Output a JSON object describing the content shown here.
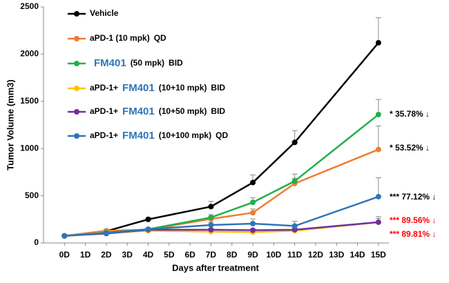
{
  "chart_data": {
    "type": "line",
    "ylabel": "Tumor Volume (mm3)",
    "xlabel": "Days after treatment",
    "x": [
      0,
      2,
      4,
      7,
      9,
      11,
      15
    ],
    "xlim": [
      -1,
      15.5
    ],
    "xticks": [
      {
        "value": 0,
        "label": "0D"
      },
      {
        "value": 1,
        "label": "1D"
      },
      {
        "value": 2,
        "label": "2D"
      },
      {
        "value": 3,
        "label": "3D"
      },
      {
        "value": 4,
        "label": "4D"
      },
      {
        "value": 5,
        "label": "5D"
      },
      {
        "value": 6,
        "label": "6D"
      },
      {
        "value": 7,
        "label": "7D"
      },
      {
        "value": 8,
        "label": "8D"
      },
      {
        "value": 9,
        "label": "9D"
      },
      {
        "value": 10,
        "label": "10D"
      },
      {
        "value": 11,
        "label": "11D"
      },
      {
        "value": 12,
        "label": "12D"
      },
      {
        "value": 13,
        "label": "13D"
      },
      {
        "value": 14,
        "label": "14D"
      },
      {
        "value": 15,
        "label": "15D"
      }
    ],
    "ylim": [
      0,
      2500
    ],
    "yticks": [
      0,
      500,
      1000,
      1500,
      2000,
      2500
    ],
    "highlight_color": "#2e75b6",
    "series": [
      {
        "name": [
          {
            "text": "Vehicle"
          }
        ],
        "color": "#000000",
        "values": [
          75,
          125,
          250,
          385,
          640,
          1065,
          2120
        ],
        "errors": [
          10,
          15,
          20,
          55,
          80,
          125,
          265
        ]
      },
      {
        "name": [
          {
            "text": "aPD-1 (10 mpk)"
          },
          {
            "text": "QD"
          }
        ],
        "color": "#ed7d31",
        "values": [
          75,
          130,
          140,
          255,
          320,
          630,
          990
        ],
        "errors": [
          10,
          15,
          15,
          25,
          40,
          100,
          250
        ],
        "annotation": {
          "text": "* 53.52% ↓",
          "color": "#000000"
        }
      },
      {
        "name": [
          {
            "text": "FM401",
            "emphasis": true
          },
          {
            "text": "(50 mpk)"
          },
          {
            "text": "BID"
          }
        ],
        "color": "#20b04b",
        "values": [
          75,
          110,
          145,
          270,
          430,
          655,
          1360
        ],
        "errors": [
          10,
          15,
          15,
          30,
          50,
          30,
          160
        ],
        "annotation": {
          "text": "* 35.78% ↓",
          "color": "#000000"
        }
      },
      {
        "name": [
          {
            "text": "aPD-1+"
          },
          {
            "text": "FM401",
            "emphasis": true
          },
          {
            "text": "(10+10 mpk)"
          },
          {
            "text": "BID"
          }
        ],
        "color": "#ffc000",
        "values": [
          75,
          105,
          130,
          120,
          115,
          130,
          220
        ],
        "errors": [
          10,
          10,
          15,
          15,
          15,
          20,
          40
        ],
        "annotation": {
          "text": "*** 89.81% ↓",
          "color": "#ff0000"
        }
      },
      {
        "name": [
          {
            "text": "aPD-1+"
          },
          {
            "text": "FM401",
            "emphasis": true
          },
          {
            "text": "(10+50 mpk)"
          },
          {
            "text": "BID"
          }
        ],
        "color": "#7030a0",
        "values": [
          75,
          100,
          140,
          140,
          135,
          140,
          220
        ],
        "errors": [
          10,
          10,
          15,
          15,
          15,
          20,
          60
        ],
        "annotation": {
          "text": "*** 89.56% ↓",
          "color": "#ff0000"
        }
      },
      {
        "name": [
          {
            "text": "aPD-1+"
          },
          {
            "text": "FM401",
            "emphasis": true
          },
          {
            "text": "(10+100 mpk)"
          },
          {
            "text": "QD"
          }
        ],
        "color": "#2e75b6",
        "values": [
          75,
          105,
          145,
          190,
          205,
          180,
          490
        ],
        "errors": [
          10,
          10,
          15,
          30,
          50,
          50,
          200
        ],
        "annotation": {
          "text": "*** 77.12% ↓",
          "color": "#000000"
        }
      }
    ]
  }
}
